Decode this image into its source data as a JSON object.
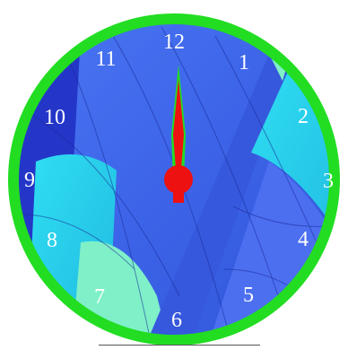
{
  "clock": {
    "numerals": [
      "12",
      "1",
      "2",
      "3",
      "4",
      "5",
      "6",
      "7",
      "8",
      "9",
      "10",
      "11"
    ],
    "hand_hour": 12,
    "hand_minute": 0
  },
  "colors": {
    "rim": "#22dd22",
    "hand_fill": "#22dd22",
    "hand_core": "#ee1111",
    "pivot": "#ee1111",
    "numerals": "#ffffff",
    "sky_blue": "#3f6cf0",
    "cyan": "#26d7ee",
    "mint": "#7ff0c8",
    "deep_blue": "#2436c8"
  },
  "icons": {
    "face": "hot-air-balloon-fabric-image",
    "pivot": "center-pivot-icon"
  }
}
